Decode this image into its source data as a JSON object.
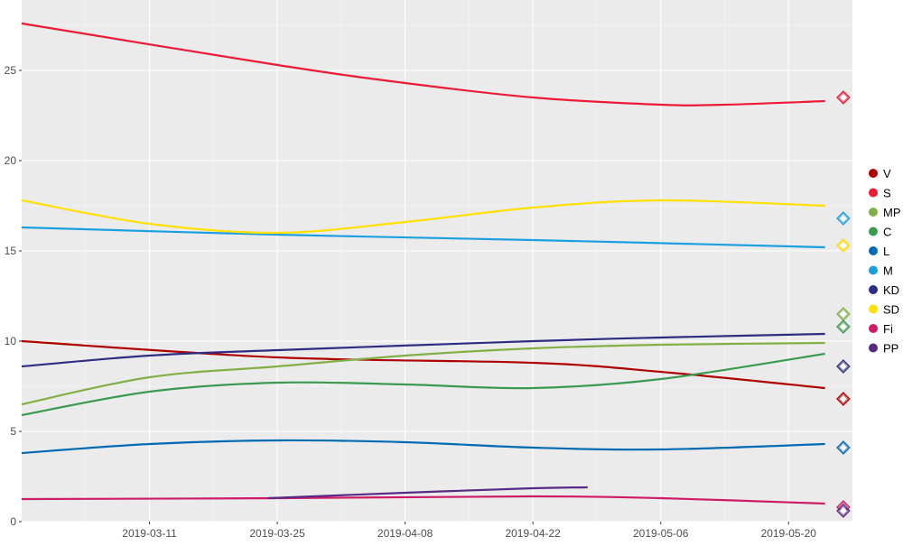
{
  "chart_data": {
    "type": "line",
    "title": "",
    "xlabel": "",
    "ylabel": "",
    "xlim": [
      "2019-02-25",
      "2019-05-27"
    ],
    "ylim": [
      0,
      28.9
    ],
    "x_ticks": [
      "2019-03-11",
      "2019-03-25",
      "2019-04-08",
      "2019-04-22",
      "2019-05-06",
      "2019-05-20"
    ],
    "y_ticks": [
      0,
      5,
      10,
      15,
      20,
      25
    ],
    "grid": true,
    "legend_position": "right",
    "result_date": "2019-05-26",
    "series": [
      {
        "name": "V",
        "color": "#AF0000",
        "result": 6.8,
        "x": [
          "2019-02-25",
          "2019-03-25",
          "2019-04-22",
          "2019-05-06",
          "2019-05-24"
        ],
        "y": [
          10.0,
          9.1,
          8.8,
          8.3,
          7.4
        ]
      },
      {
        "name": "S",
        "color": "#ED1B34",
        "result": 23.5,
        "x": [
          "2019-02-25",
          "2019-03-25",
          "2019-04-08",
          "2019-04-22",
          "2019-05-06",
          "2019-05-13",
          "2019-05-24"
        ],
        "y": [
          27.6,
          25.3,
          24.3,
          23.5,
          23.1,
          23.1,
          23.3
        ]
      },
      {
        "name": "MP",
        "color": "#83B046",
        "result": 11.5,
        "x": [
          "2019-02-25",
          "2019-03-11",
          "2019-03-25",
          "2019-04-08",
          "2019-04-22",
          "2019-05-06",
          "2019-05-24"
        ],
        "y": [
          6.5,
          8.0,
          8.6,
          9.2,
          9.6,
          9.8,
          9.9
        ]
      },
      {
        "name": "C",
        "color": "#3A9A4F",
        "result": 10.8,
        "x": [
          "2019-02-25",
          "2019-03-11",
          "2019-03-25",
          "2019-04-08",
          "2019-04-22",
          "2019-05-06",
          "2019-05-24"
        ],
        "y": [
          5.9,
          7.2,
          7.7,
          7.6,
          7.4,
          7.9,
          9.3
        ]
      },
      {
        "name": "L",
        "color": "#006AB3",
        "result": 4.1,
        "x": [
          "2019-02-25",
          "2019-03-11",
          "2019-03-25",
          "2019-04-08",
          "2019-04-22",
          "2019-05-06",
          "2019-05-24"
        ],
        "y": [
          3.8,
          4.3,
          4.5,
          4.4,
          4.1,
          4.0,
          4.3
        ]
      },
      {
        "name": "M",
        "color": "#1B9FE0",
        "result": 16.8,
        "x": [
          "2019-02-25",
          "2019-03-25",
          "2019-04-22",
          "2019-05-24"
        ],
        "y": [
          16.3,
          15.9,
          15.6,
          15.2
        ]
      },
      {
        "name": "KD",
        "color": "#2D2E83",
        "result": 8.6,
        "x": [
          "2019-02-25",
          "2019-03-11",
          "2019-03-25",
          "2019-04-22",
          "2019-05-06",
          "2019-05-24"
        ],
        "y": [
          8.6,
          9.2,
          9.5,
          10.0,
          10.2,
          10.4
        ]
      },
      {
        "name": "SD",
        "color": "#FFE000",
        "result": 15.3,
        "x": [
          "2019-02-25",
          "2019-03-11",
          "2019-03-25",
          "2019-04-08",
          "2019-04-22",
          "2019-05-06",
          "2019-05-24"
        ],
        "y": [
          17.8,
          16.5,
          16.0,
          16.6,
          17.4,
          17.8,
          17.5
        ]
      },
      {
        "name": "Fi",
        "color": "#CD1B68",
        "result": 0.8,
        "x": [
          "2019-02-25",
          "2019-03-25",
          "2019-04-22",
          "2019-05-06",
          "2019-05-24"
        ],
        "y": [
          1.25,
          1.3,
          1.4,
          1.3,
          1.0
        ]
      },
      {
        "name": "PP",
        "color": "#572B85",
        "result": 0.6,
        "x": [
          "2019-03-24",
          "2019-04-08",
          "2019-04-22",
          "2019-04-28"
        ],
        "y": [
          1.3,
          1.6,
          1.85,
          1.9
        ]
      }
    ]
  }
}
